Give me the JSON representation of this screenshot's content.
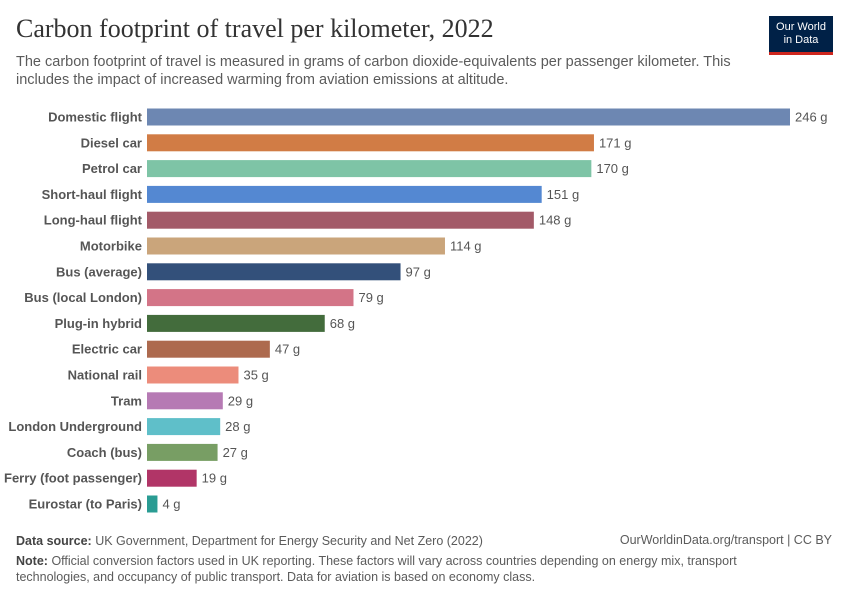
{
  "header": {
    "title": "Carbon footprint of travel per kilometer, 2022",
    "subtitle": "The carbon footprint of travel is measured in grams of carbon dioxide-equivalents per passenger kilometer. This includes the impact of increased warming from aviation emissions at altitude.",
    "logo": "Our World in Data"
  },
  "chart_data": {
    "type": "bar",
    "orientation": "horizontal",
    "unit": "g",
    "title": "Carbon footprint of travel per kilometer, 2022",
    "categories": [
      "Domestic flight",
      "Diesel car",
      "Petrol car",
      "Short-haul flight",
      "Long-haul flight",
      "Motorbike",
      "Bus (average)",
      "Bus (local London)",
      "Plug-in hybrid",
      "Electric car",
      "National rail",
      "Tram",
      "London Underground",
      "Coach (bus)",
      "Ferry (foot passenger)",
      "Eurostar (to Paris)"
    ],
    "values": [
      246,
      171,
      170,
      151,
      148,
      114,
      97,
      79,
      68,
      47,
      35,
      29,
      28,
      27,
      19,
      4
    ],
    "labels": [
      "246 g",
      "171 g",
      "170 g",
      "151 g",
      "148 g",
      "114 g",
      "97 g",
      "79 g",
      "68 g",
      "47 g",
      "35 g",
      "29 g",
      "28 g",
      "27 g",
      "19 g",
      "4 g"
    ],
    "colors": [
      "#6d87b2",
      "#d17c45",
      "#7ec4a6",
      "#5488d2",
      "#a35a68",
      "#caa57b",
      "#33507a",
      "#d37487",
      "#436c3c",
      "#ad6a4e",
      "#ec8c7b",
      "#b67ab4",
      "#5fbfc9",
      "#789e64",
      "#b13567",
      "#2a9c93"
    ],
    "grid": false
  },
  "footer": {
    "source_label": "Data source:",
    "source": "UK Government, Department for Energy Security and Net Zero (2022)",
    "url": "OurWorldinData.org/transport | CC BY",
    "note_label": "Note:",
    "note": "Official conversion factors used in UK reporting. These factors will vary across countries depending on energy mix, transport technologies, and occupancy of public transport. Data for aviation is based on economy class."
  }
}
